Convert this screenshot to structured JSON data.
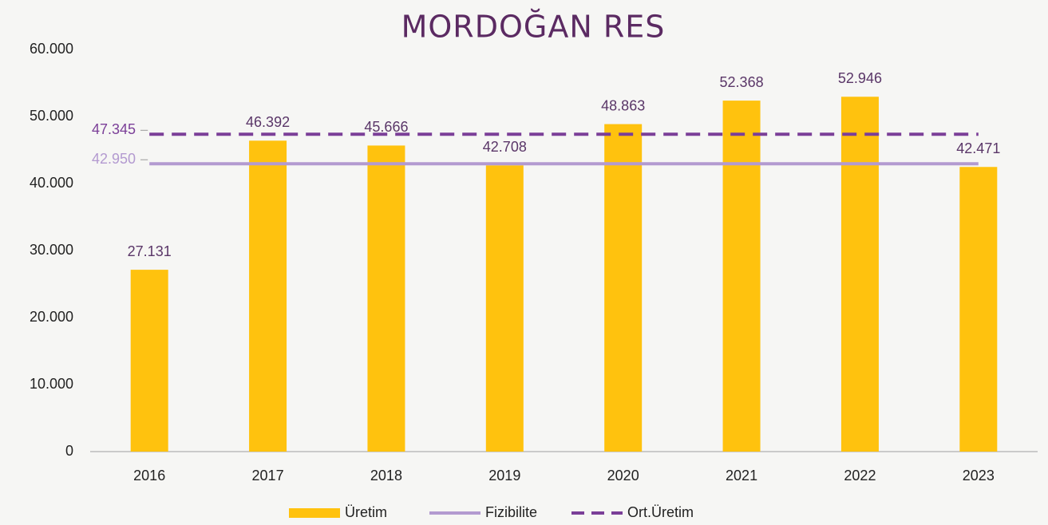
{
  "chart_data": {
    "type": "bar",
    "title": "MORDOĞAN RES",
    "categories": [
      "2016",
      "2017",
      "2018",
      "2019",
      "2020",
      "2021",
      "2022",
      "2023"
    ],
    "series": [
      {
        "name": "Üretim",
        "type": "bar",
        "color": "#ffc20e",
        "values": [
          27131,
          46392,
          45666,
          42708,
          48863,
          52368,
          52946,
          42471
        ],
        "value_labels": [
          "27.131",
          "46.392",
          "45.666",
          "42.708",
          "48.863",
          "52.368",
          "52.946",
          "42.471"
        ]
      },
      {
        "name": "Fizibilite",
        "type": "line",
        "color": "#b39ad0",
        "dash": false,
        "values": [
          42950,
          42950,
          42950,
          42950,
          42950,
          42950,
          42950,
          42950
        ],
        "value_label": "42.950"
      },
      {
        "name": "Ort.Üretim",
        "type": "line",
        "color": "#7b3f98",
        "dash": true,
        "values": [
          47345,
          47345,
          47345,
          47345,
          47345,
          47345,
          47345,
          47345
        ],
        "value_label": "47.345"
      }
    ],
    "ylim": [
      0,
      60000
    ],
    "yticks": [
      0,
      {
        "value": 10000,
        "label": "10.000"
      },
      {
        "value": 20000,
        "label": "20.000"
      },
      {
        "value": 30000,
        "label": "30.000"
      },
      {
        "value": 40000,
        "label": "40.000"
      },
      {
        "value": 50000,
        "label": "50.000"
      },
      {
        "value": 60000,
        "label": "60.000"
      }
    ],
    "grid": false
  }
}
